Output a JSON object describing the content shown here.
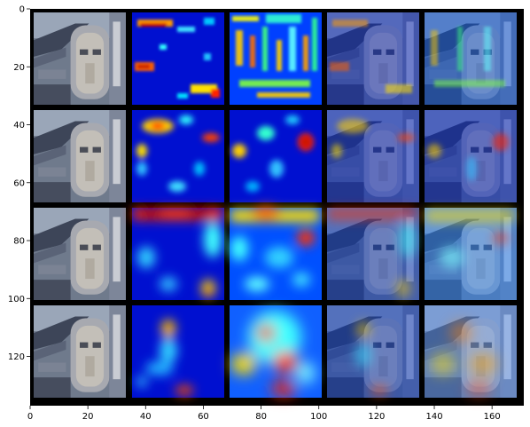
{
  "figure": {
    "grid_rows": 4,
    "grid_cols": 5,
    "x_ticks": [
      "0",
      "20",
      "40",
      "60",
      "80",
      "100",
      "120",
      "140",
      "160"
    ],
    "y_ticks": [
      "0",
      "20",
      "40",
      "60",
      "80",
      "100",
      "120"
    ],
    "x_range": [
      0,
      171
    ],
    "y_range": [
      0,
      137
    ],
    "columns": [
      "input-image",
      "saliency-map-a",
      "saliency-map-b",
      "overlay-a",
      "overlay-b"
    ],
    "colormap": "jet",
    "background_color": "#000000"
  }
}
